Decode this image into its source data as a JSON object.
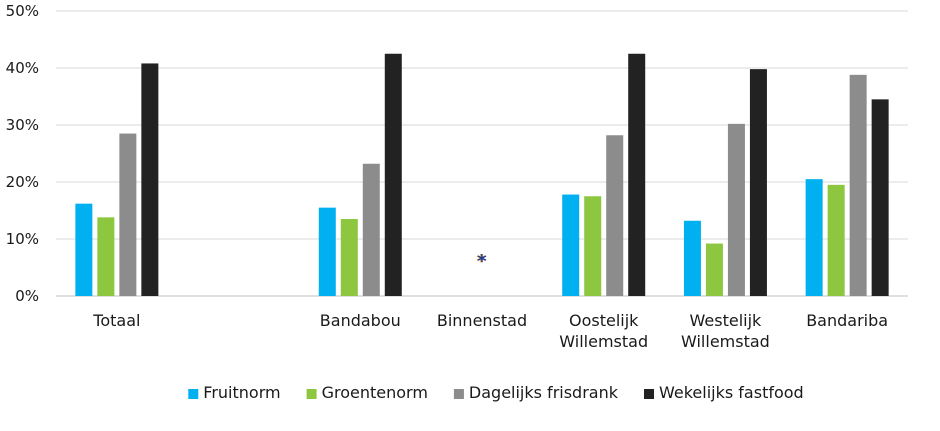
{
  "chart_data": {
    "type": "bar",
    "categories": [
      "Totaal",
      "",
      "Bandabou",
      "Binnenstad",
      "Oostelijk\nWillemstad",
      "Westelijk\nWillemstad",
      "Bandariba"
    ],
    "series": [
      {
        "name": "Fruitnorm",
        "color": "#00b0f0",
        "values": [
          16.2,
          null,
          15.5,
          null,
          17.8,
          13.2,
          20.5
        ]
      },
      {
        "name": "Groentenorm",
        "color": "#8dc63f",
        "values": [
          13.8,
          null,
          13.5,
          null,
          17.5,
          9.2,
          19.5
        ]
      },
      {
        "name": "Dagelijks frisdrank",
        "color": "#8c8c8c",
        "values": [
          28.5,
          null,
          23.2,
          null,
          28.2,
          30.2,
          38.8
        ]
      },
      {
        "name": "Wekelijks fastfood",
        "color": "#222222",
        "values": [
          40.8,
          null,
          42.5,
          null,
          42.5,
          39.8,
          34.5
        ]
      }
    ],
    "ylim": [
      0,
      50
    ],
    "yticks": [
      0,
      10,
      20,
      30,
      40,
      50
    ],
    "ytick_labels": [
      "0%",
      "10%",
      "20%",
      "30%",
      "40%",
      "50%"
    ],
    "grid": true,
    "legend_position": "bottom",
    "annotation": {
      "text": "*",
      "category_index": 3,
      "value": 6.5,
      "color": "#1f3a93",
      "shadow_color": "#e3a13b"
    },
    "title": "",
    "xlabel": "",
    "ylabel": ""
  }
}
